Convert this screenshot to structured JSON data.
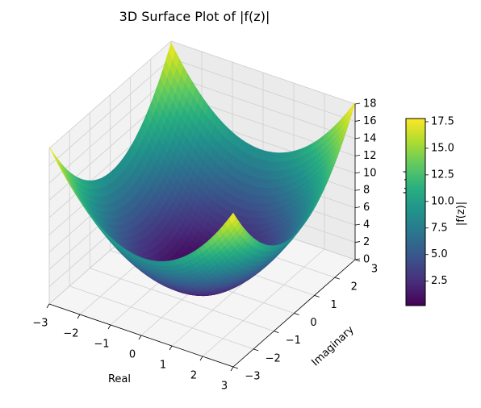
{
  "figure": {
    "title": "3D Surface Plot of |f(z)|"
  },
  "chart_data": {
    "type": "surface3d",
    "title": "3D Surface Plot of |f(z)|",
    "function_label": "|f(z)|",
    "xlabel": "Real",
    "ylabel": "Imaginary",
    "zlabel": "|f(z)|",
    "xlim": [
      -3,
      3
    ],
    "ylim": [
      -3,
      3
    ],
    "zlim": [
      0,
      18
    ],
    "x_ticks": [
      "−3",
      "−2",
      "−1",
      "0",
      "1",
      "2",
      "3"
    ],
    "y_ticks": [
      "−3",
      "−2",
      "−1",
      "0",
      "1",
      "2",
      "3"
    ],
    "z_ticks": [
      "0",
      "2",
      "4",
      "6",
      "8",
      "10",
      "12",
      "14",
      "16",
      "18"
    ],
    "corner_values": {
      "x-3_y-3": 18,
      "x3_y-3": 18,
      "x3_y3": 18,
      "x-3_y3": 18
    },
    "min_value": 0.2,
    "grid": true,
    "colormap": "viridis",
    "colorbar": {
      "label": "|f(z)|",
      "range": [
        0.2,
        17.8
      ],
      "ticks": [
        "2.5",
        "5.0",
        "7.5",
        "10.0",
        "12.5",
        "15.0",
        "17.5"
      ]
    }
  }
}
